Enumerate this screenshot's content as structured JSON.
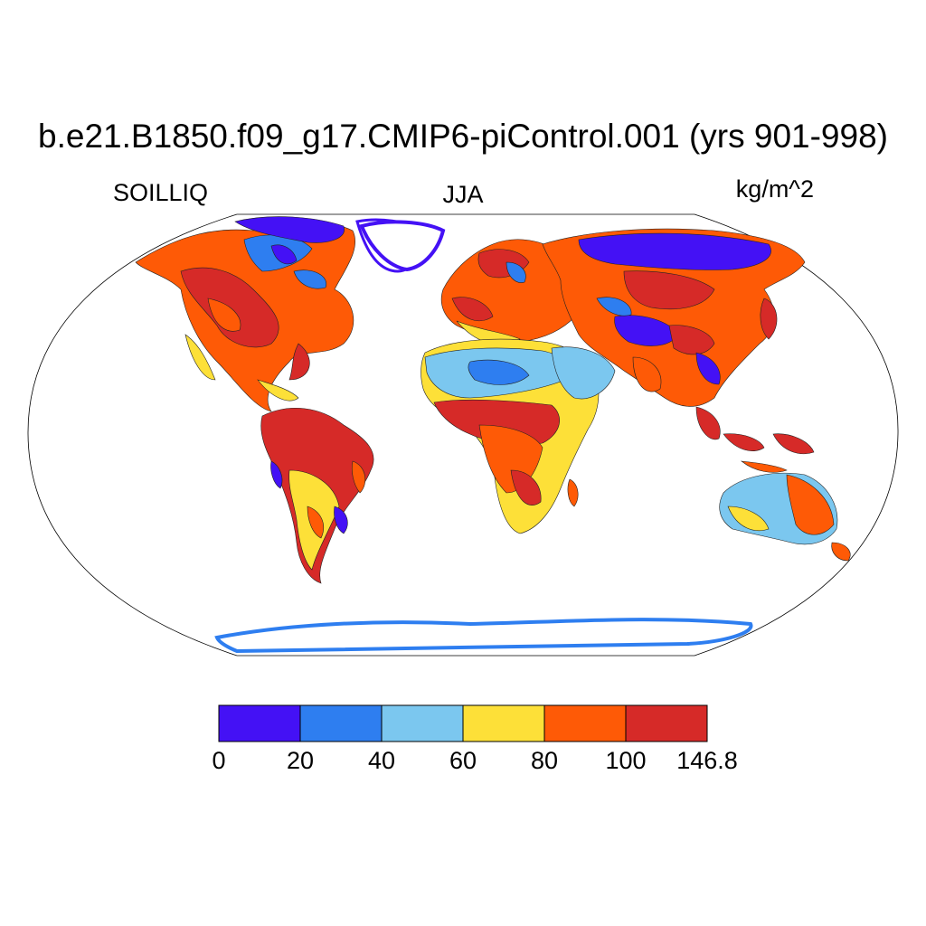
{
  "title": "b.e21.B1850.f09_g17.CMIP6-piControl.001 (yrs 901-998)",
  "variable": "SOILLIQ",
  "season": "JJA",
  "units": "kg/m^2",
  "colorbar": {
    "bins": [
      {
        "label": "0",
        "color": "#4411f5"
      },
      {
        "label": "20",
        "color": "#2e7ef0"
      },
      {
        "label": "40",
        "color": "#7bc7ef"
      },
      {
        "label": "60",
        "color": "#fde038"
      },
      {
        "label": "80",
        "color": "#fe5a06"
      },
      {
        "label": "100",
        "color": "#d62a28"
      }
    ],
    "end_label": "146.8"
  }
}
